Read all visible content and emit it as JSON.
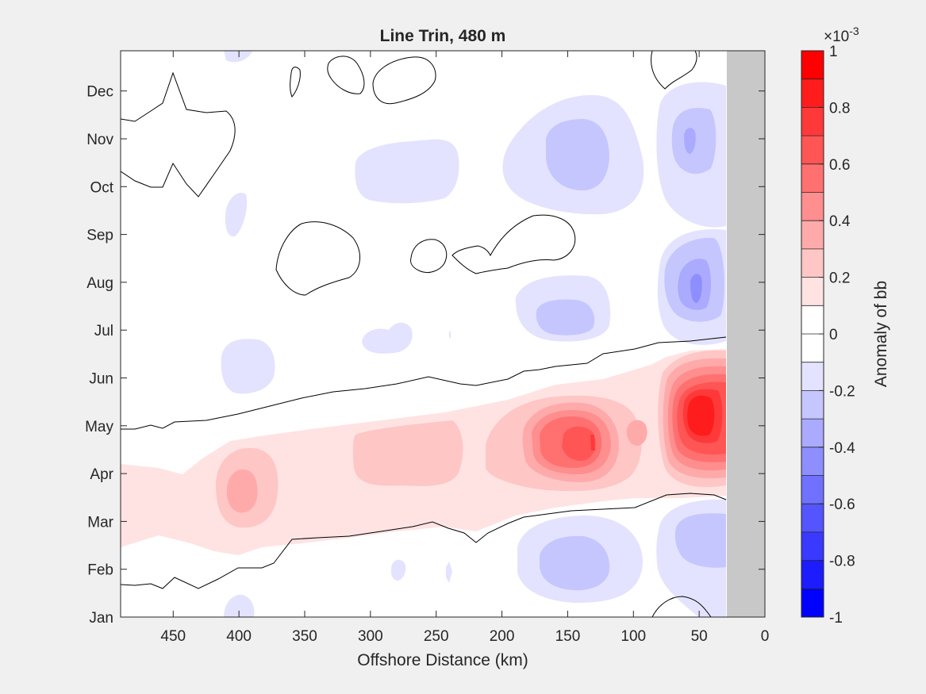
{
  "chart_data": {
    "type": "heatmap",
    "title": "Line Trin, 480 m",
    "xlabel": "Offshore Distance (km)",
    "ylabel": "",
    "xlim": [
      490,
      0
    ],
    "x_reversed": true,
    "xticks": [
      450,
      400,
      350,
      300,
      250,
      200,
      150,
      100,
      50,
      0
    ],
    "yticks": [
      "Jan",
      "Feb",
      "Mar",
      "Apr",
      "May",
      "Jun",
      "Jul",
      "Aug",
      "Sep",
      "Oct",
      "Nov",
      "Dec"
    ],
    "no_data_region_km": [
      0,
      29
    ],
    "colorbar": {
      "label": "Anomaly of bb",
      "exponent_label": "×10",
      "exponent_power": "-3",
      "clim": [
        -1,
        1
      ],
      "tick_labels": [
        "1",
        "0.8",
        "0.6",
        "0.4",
        "0.2",
        "0",
        "-0.2",
        "-0.4",
        "-0.6",
        "-0.8",
        "-1"
      ],
      "colors": [
        "#ff0000",
        "#ff1c1c",
        "#ff3939",
        "#ff5555",
        "#ff7171",
        "#ff8e8e",
        "#ffaaaa",
        "#ffc6c6",
        "#ffe3e3",
        "#ffffff",
        "#ffffff",
        "#e3e3ff",
        "#c6c6ff",
        "#aaaaff",
        "#8e8eff",
        "#7171ff",
        "#5555ff",
        "#3939ff",
        "#1c1cff",
        "#0000ff"
      ]
    },
    "features": [
      {
        "sign": "positive",
        "km": 50,
        "month": "May",
        "peak": 0.9
      },
      {
        "sign": "positive",
        "km": 130,
        "month": "May",
        "peak": 0.65
      },
      {
        "sign": "positive",
        "km": 395,
        "month": "Apr",
        "peak": 0.4
      },
      {
        "sign": "positive",
        "km": 260,
        "month": "Apr-May",
        "peak": 0.25
      },
      {
        "sign": "negative",
        "km": 50,
        "month": "Aug",
        "peak": -0.5
      },
      {
        "sign": "negative",
        "km": 130,
        "month": "Aug",
        "peak": -0.3
      },
      {
        "sign": "negative",
        "km": 50,
        "month": "Feb-Mar",
        "peak": -0.35
      },
      {
        "sign": "negative",
        "km": 140,
        "month": "Feb",
        "peak": -0.3
      },
      {
        "sign": "negative",
        "km": 140,
        "month": "Nov",
        "peak": -0.3
      },
      {
        "sign": "negative",
        "km": 55,
        "month": "Nov",
        "peak": -0.45
      }
    ],
    "colors": {
      "background": "#f0f0f0",
      "axes": "#ffffff",
      "land": "#c8c8c8",
      "contour": "#000000"
    }
  }
}
